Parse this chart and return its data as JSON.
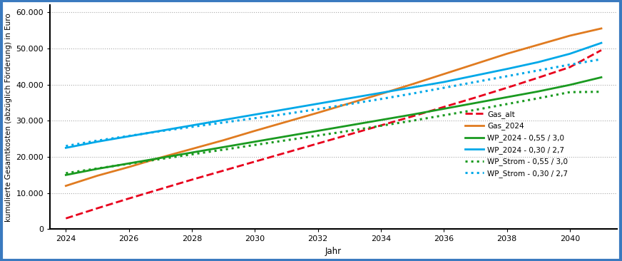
{
  "years": [
    2024,
    2025,
    2026,
    2027,
    2028,
    2029,
    2030,
    2031,
    2032,
    2033,
    2034,
    2035,
    2036,
    2037,
    2038,
    2039,
    2040,
    2041
  ],
  "series": {
    "Gas_alt": {
      "color": "#e8001c",
      "linestyle": "--",
      "linewidth": 2.0,
      "values": [
        3000,
        5800,
        8500,
        11100,
        13700,
        16200,
        18700,
        21200,
        23700,
        26200,
        28700,
        31200,
        33800,
        36400,
        39100,
        41900,
        44800,
        49500
      ]
    },
    "Gas_2024": {
      "color": "#e07b20",
      "linestyle": "-",
      "linewidth": 2.0,
      "values": [
        12000,
        14800,
        17200,
        19800,
        22200,
        24600,
        27200,
        29700,
        32200,
        34800,
        37400,
        40100,
        42900,
        45700,
        48500,
        51000,
        53500,
        55500
      ]
    },
    "WP_2024 - 0,55 / 3,0": {
      "color": "#1a9a20",
      "linestyle": "-",
      "linewidth": 2.0,
      "values": [
        15000,
        16700,
        18200,
        19700,
        21200,
        22700,
        24200,
        25700,
        27200,
        28700,
        30200,
        31700,
        33300,
        34900,
        36500,
        38100,
        39900,
        42000
      ]
    },
    "WP_2024 - 0,30 / 2,7": {
      "color": "#00a8e8",
      "linestyle": "-",
      "linewidth": 2.0,
      "values": [
        22500,
        24200,
        25700,
        27200,
        28700,
        30200,
        31700,
        33200,
        34700,
        36200,
        37700,
        39200,
        40700,
        42500,
        44300,
        46200,
        48500,
        51500
      ]
    },
    "WP_Strom - 0,55 / 3,0": {
      "color": "#1a9a20",
      "linestyle": ":",
      "linewidth": 2.2,
      "values": [
        15500,
        16800,
        18100,
        19400,
        20700,
        22000,
        23300,
        24600,
        25900,
        27200,
        28600,
        30000,
        31500,
        33000,
        34600,
        36200,
        37900,
        38000
      ]
    },
    "WP_Strom - 0,30 / 2,7": {
      "color": "#00a8e8",
      "linestyle": ":",
      "linewidth": 2.2,
      "values": [
        23000,
        24500,
        25800,
        27100,
        28300,
        29500,
        30700,
        31900,
        33200,
        34600,
        36000,
        37500,
        39100,
        40700,
        42300,
        43900,
        45500,
        47000
      ]
    }
  },
  "xlabel": "Jahr",
  "ylabel": "kumulierte Gesamtkosten (abzüglich Förderung) in Euro",
  "ylim": [
    0,
    62000
  ],
  "yticks": [
    0,
    10000,
    20000,
    30000,
    40000,
    50000,
    60000
  ],
  "ytick_labels": [
    "0",
    "10.000",
    "20.000",
    "30.000",
    "40.000",
    "50.000",
    "60.000"
  ],
  "xlim": [
    2023.5,
    2041.5
  ],
  "xticks": [
    2024,
    2026,
    2028,
    2030,
    2032,
    2034,
    2036,
    2038,
    2040
  ],
  "background_color": "#ffffff",
  "border_color": "#3a7abf",
  "grid_color": "#aaaaaa",
  "axis_fontsize": 8,
  "legend_fontsize": 7.5
}
